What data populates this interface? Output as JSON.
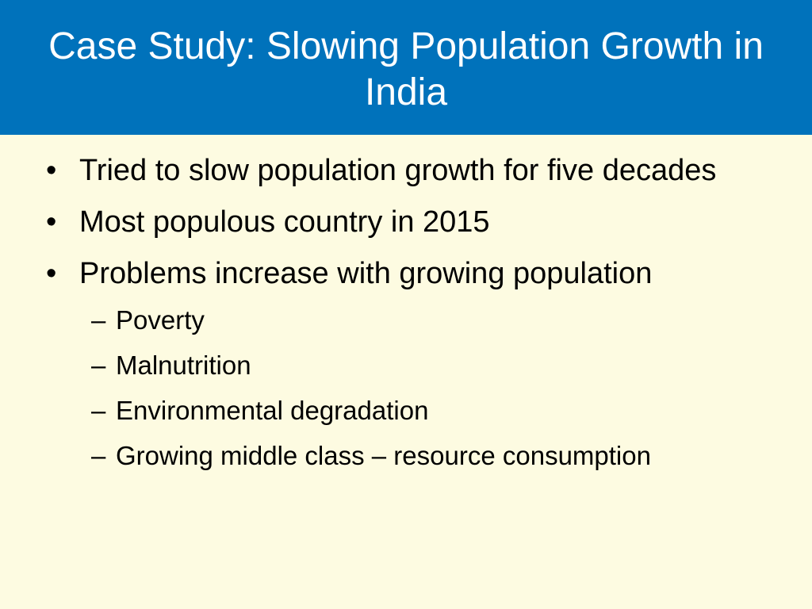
{
  "slide": {
    "title": "Case Study: Slowing Population Growth in India",
    "bullets": [
      {
        "marker": "•",
        "text": "Tried to slow population growth for five decades"
      },
      {
        "marker": "•",
        "text": "Most populous country in 2015"
      },
      {
        "marker": "•",
        "text": "Problems increase with growing population",
        "sub_bullets": [
          {
            "marker": "–",
            "text": "Poverty"
          },
          {
            "marker": "–",
            "text": "Malnutrition"
          },
          {
            "marker": "–",
            "text": "Environmental degradation"
          },
          {
            "marker": "–",
            "text": "Growing middle class – resource consumption"
          }
        ]
      }
    ]
  },
  "colors": {
    "title_bar": "#0072BB",
    "background": "#FDFBE1",
    "title_text": "#FFFFFF",
    "body_text": "#000000"
  }
}
